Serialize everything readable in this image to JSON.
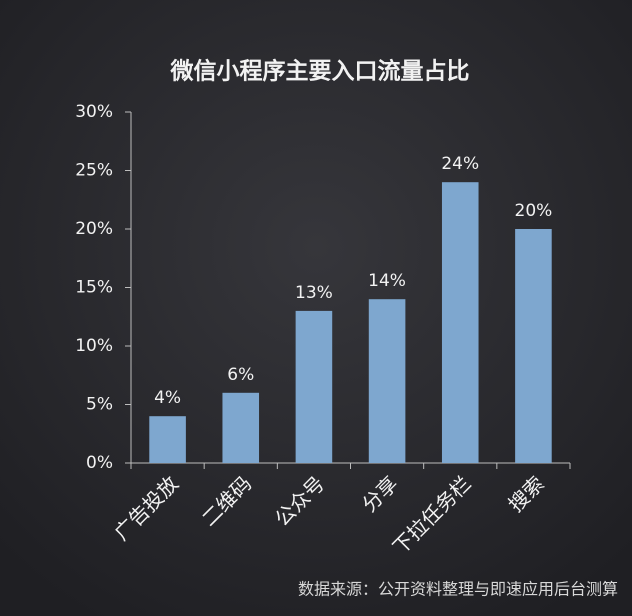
{
  "chart_data": {
    "type": "bar",
    "title": "微信小程序主要入口流量占比",
    "categories": [
      "广告投放",
      "二维码",
      "公众号",
      "分享",
      "下拉任务栏",
      "搜索"
    ],
    "values": [
      4,
      6,
      13,
      14,
      24,
      20
    ],
    "value_labels": [
      "4%",
      "6%",
      "13%",
      "14%",
      "24%",
      "20%"
    ],
    "color": "#7ea7cf",
    "ylim": [
      0,
      30
    ],
    "yticks": [
      {
        "value": 0,
        "label": "0%"
      },
      {
        "value": 5,
        "label": "5%"
      },
      {
        "value": 10,
        "label": "10%"
      },
      {
        "value": 15,
        "label": "15%"
      },
      {
        "value": 20,
        "label": "20%"
      },
      {
        "value": 25,
        "label": "25%"
      },
      {
        "value": 30,
        "label": "30%"
      }
    ],
    "source": "数据来源：公开资料整理与即速应用后台测算"
  }
}
